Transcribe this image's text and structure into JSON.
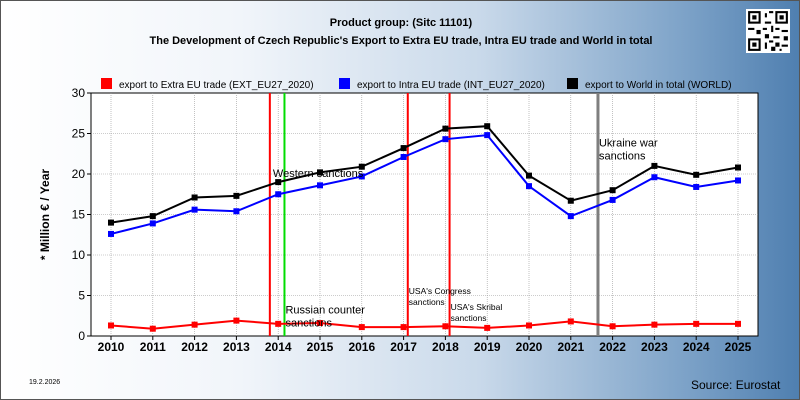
{
  "header": {
    "title_line1": "Product group:  (Sitc 11101)",
    "title_line2": "The Development of Czech Republic's Export to Extra EU trade, Intra EU trade and World in total"
  },
  "footer": {
    "date": "19.2.2026",
    "source": "Source: Eurostat"
  },
  "colors": {
    "extra": "#ff0000",
    "intra": "#0000ff",
    "world": "#000000",
    "western_sanctions": "#00dd00",
    "war": "#7f7f7f"
  },
  "chart_data": {
    "type": "line",
    "title": "",
    "ylabel": "* Million € / Year",
    "xlabel": "",
    "ylim": [
      0,
      30
    ],
    "yticks": [
      0,
      5,
      10,
      15,
      20,
      25,
      30
    ],
    "grid": true,
    "legend_position": "top",
    "x": [
      "2010",
      "2011",
      "2012",
      "2013",
      "2014",
      "2015",
      "2016",
      "2017",
      "2018",
      "2019",
      "2020",
      "2021",
      "2022",
      "2023",
      "2024",
      "2025"
    ],
    "series": [
      {
        "key": "extra",
        "name": "export to Extra EU trade (EXT_EU27_2020)",
        "color": "#ff0000",
        "values": [
          1.3,
          0.9,
          1.4,
          1.9,
          1.5,
          1.6,
          1.1,
          1.1,
          1.2,
          1.0,
          1.3,
          1.8,
          1.2,
          1.4,
          1.5,
          1.5
        ]
      },
      {
        "key": "intra",
        "name": "export to Intra EU trade (INT_EU27_2020)",
        "color": "#0000ff",
        "values": [
          12.6,
          13.9,
          15.6,
          15.4,
          17.5,
          18.6,
          19.7,
          22.1,
          24.3,
          24.8,
          18.5,
          14.8,
          16.8,
          19.6,
          18.4,
          19.2
        ]
      },
      {
        "key": "world",
        "name": "export to World in total (WORLD)",
        "color": "#000000",
        "values": [
          14.0,
          14.8,
          17.1,
          17.3,
          19.0,
          20.2,
          20.9,
          23.2,
          25.6,
          25.9,
          19.8,
          16.7,
          18.0,
          21.0,
          19.9,
          20.8
        ]
      }
    ],
    "annotations": [
      {
        "x": 2013.8,
        "color": "#ff0000",
        "label": "",
        "label_y": null
      },
      {
        "x": 2014.15,
        "color": "#00dd00",
        "label": "Western sanctions",
        "label_y": 19.6,
        "label_x": 2013.85
      },
      {
        "x": 2014.15,
        "color": "#00dd00",
        "label": "Russian counter sanctions",
        "label_y": 2.8,
        "label_x": 2014.15,
        "second_label_only": true
      },
      {
        "x": 2017.1,
        "color": "#ff0000",
        "label": "USA's Congress sanctions",
        "label_y": 5.2,
        "label_x": 2017.1,
        "small": true
      },
      {
        "x": 2018.1,
        "color": "#ff0000",
        "label": "USA's Skribal sanctions",
        "label_y": 3.2,
        "label_x": 2018.1,
        "small": true
      },
      {
        "x": 2021.65,
        "color": "#7f7f7f",
        "label": "Ukraine war sanctions",
        "label_y": 23.4,
        "label_x": 2021.65
      }
    ]
  }
}
